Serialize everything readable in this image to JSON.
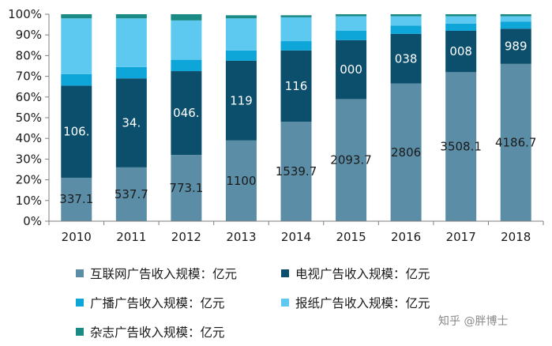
{
  "chart_data": {
    "type": "bar",
    "stacked": true,
    "normalized": true,
    "categories": [
      "2010",
      "2011",
      "2012",
      "2013",
      "2014",
      "2015",
      "2016",
      "2017",
      "2018"
    ],
    "y_ticks": [
      "0%",
      "10%",
      "20%",
      "30%",
      "40%",
      "50%",
      "60%",
      "70%",
      "80%",
      "90%",
      "100%"
    ],
    "ylim": [
      0,
      100
    ],
    "grid": false,
    "legend_position": "bottom",
    "series": [
      {
        "name": "互联网广告收入规模：亿元",
        "color": "#5b8ea6",
        "shares": [
          21,
          26,
          32,
          39,
          48,
          59,
          66.5,
          72,
          76
        ],
        "labels": [
          "337.1",
          "537.7",
          "773.1",
          "1100",
          "1539.7",
          "2093.7",
          "2806",
          "3508.1",
          "4186.7"
        ]
      },
      {
        "name": "电视广告收入规模：亿元",
        "color": "#0b4f6c",
        "shares": [
          44.5,
          43,
          40.5,
          38.5,
          34.5,
          28.5,
          24,
          20,
          17
        ],
        "labels": [
          "106.",
          "34.",
          "046.",
          "119",
          "116",
          "000",
          "038",
          "008",
          "989"
        ]
      },
      {
        "name": "广播广告收入规模：亿元",
        "color": "#0ea5d9",
        "shares": [
          5.5,
          5.5,
          5.5,
          5,
          4.5,
          4.5,
          4,
          3.5,
          3.5
        ]
      },
      {
        "name": "报纸广告收入规模：亿元",
        "color": "#5ec9f0",
        "shares": [
          27,
          23.5,
          19,
          15.5,
          11.5,
          7,
          4.5,
          3.5,
          2.5
        ]
      },
      {
        "name": "杂志广告收入规模：亿元",
        "color": "#1a8a84",
        "shares": [
          2,
          2,
          3,
          1.5,
          1,
          1,
          1,
          1,
          1
        ]
      }
    ]
  },
  "watermark": "知乎 @胖博士"
}
